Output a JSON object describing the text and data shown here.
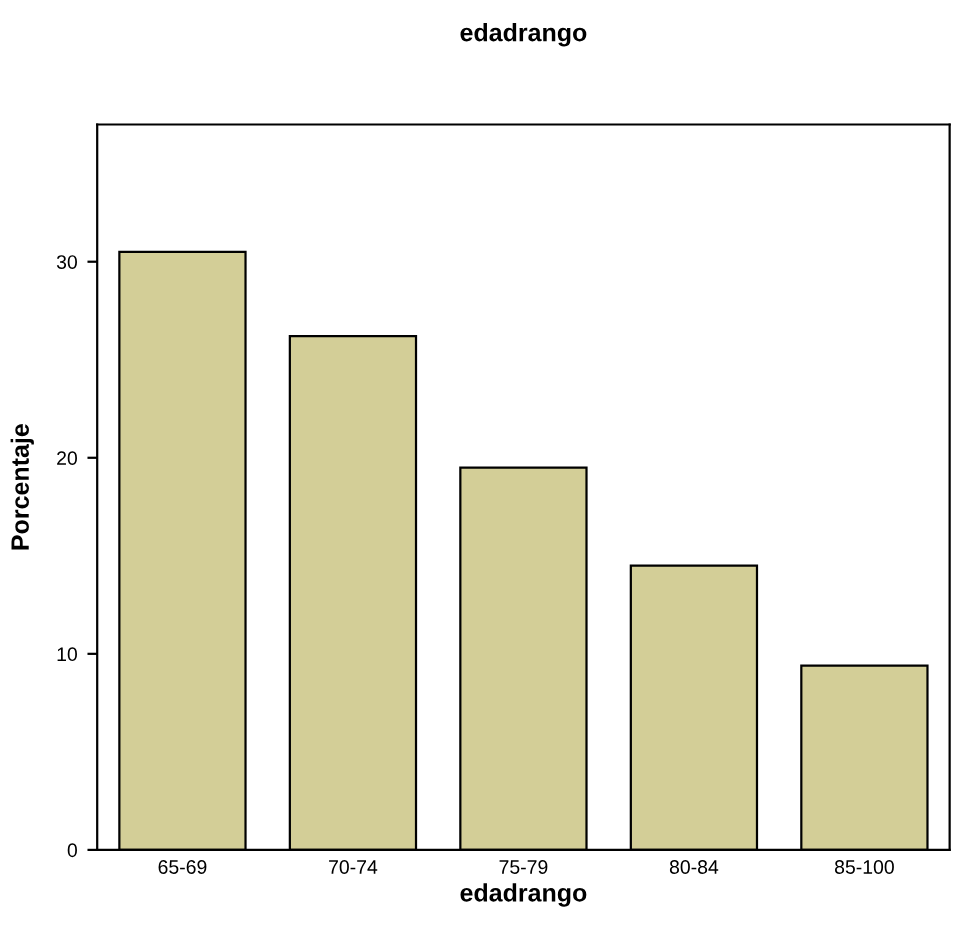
{
  "chart_data": {
    "type": "bar",
    "title": "edadrango",
    "xlabel": "edadrango",
    "ylabel": "Porcentaje",
    "categories": [
      "65-69",
      "70-74",
      "75-79",
      "80-84",
      "85-100"
    ],
    "values": [
      30.5,
      26.2,
      19.5,
      14.5,
      9.4
    ],
    "color": "#d3ce97",
    "ylim": [
      0,
      37
    ],
    "yticks": [
      0,
      10,
      20,
      30
    ],
    "grid": false
  }
}
